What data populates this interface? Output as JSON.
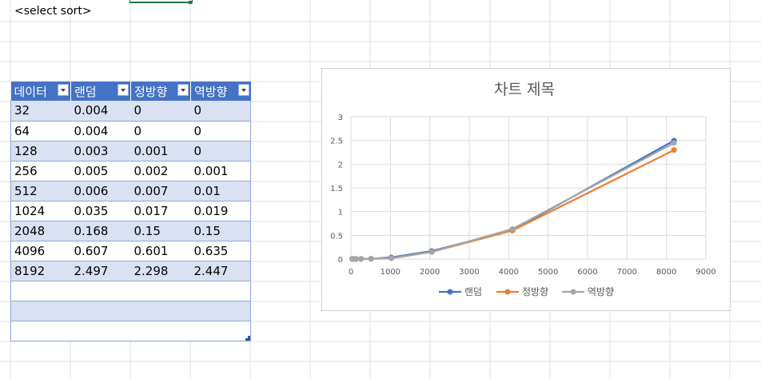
{
  "sheet": {
    "cell_text": "<select sort>"
  },
  "table": {
    "headers": [
      "데이터",
      "랜덤",
      "정방향",
      "역방향"
    ],
    "rows": [
      [
        "32",
        "0.004",
        "0",
        "0"
      ],
      [
        "64",
        "0.004",
        "0",
        "0"
      ],
      [
        "128",
        "0.003",
        "0.001",
        "0"
      ],
      [
        "256",
        "0.005",
        "0.002",
        "0.001"
      ],
      [
        "512",
        "0.006",
        "0.007",
        "0.01"
      ],
      [
        "1024",
        "0.035",
        "0.017",
        "0.019"
      ],
      [
        "2048",
        "0.168",
        "0.15",
        "0.15"
      ],
      [
        "4096",
        "0.607",
        "0.601",
        "0.635"
      ],
      [
        "8192",
        "2.497",
        "2.298",
        "2.447"
      ],
      [
        "",
        "",
        "",
        ""
      ],
      [
        "",
        "",
        "",
        ""
      ],
      [
        "",
        "",
        "",
        ""
      ]
    ]
  },
  "chart_data": {
    "type": "scatter",
    "title": "차트 제목",
    "x": [
      32,
      64,
      128,
      256,
      512,
      1024,
      2048,
      4096,
      8192
    ],
    "series": [
      {
        "name": "랜덤",
        "color": "#4472c4",
        "values": [
          0.004,
          0.004,
          0.003,
          0.005,
          0.006,
          0.035,
          0.168,
          0.607,
          2.497
        ]
      },
      {
        "name": "정방향",
        "color": "#ed7d31",
        "values": [
          0,
          0,
          0.001,
          0.002,
          0.007,
          0.017,
          0.15,
          0.601,
          2.298
        ]
      },
      {
        "name": "역방향",
        "color": "#a5a5a5",
        "values": [
          0,
          0,
          0,
          0.001,
          0.01,
          0.019,
          0.15,
          0.635,
          2.447
        ]
      }
    ],
    "xlim": [
      0,
      9000
    ],
    "ylim": [
      0,
      3
    ],
    "xticks": [
      "0",
      "1000",
      "2000",
      "3000",
      "4000",
      "5000",
      "6000",
      "7000",
      "8000",
      "9000"
    ],
    "yticks": [
      "0",
      "0.5",
      "1",
      "1.5",
      "2",
      "2.5",
      "3"
    ],
    "grid": true,
    "legend": "bottom"
  }
}
